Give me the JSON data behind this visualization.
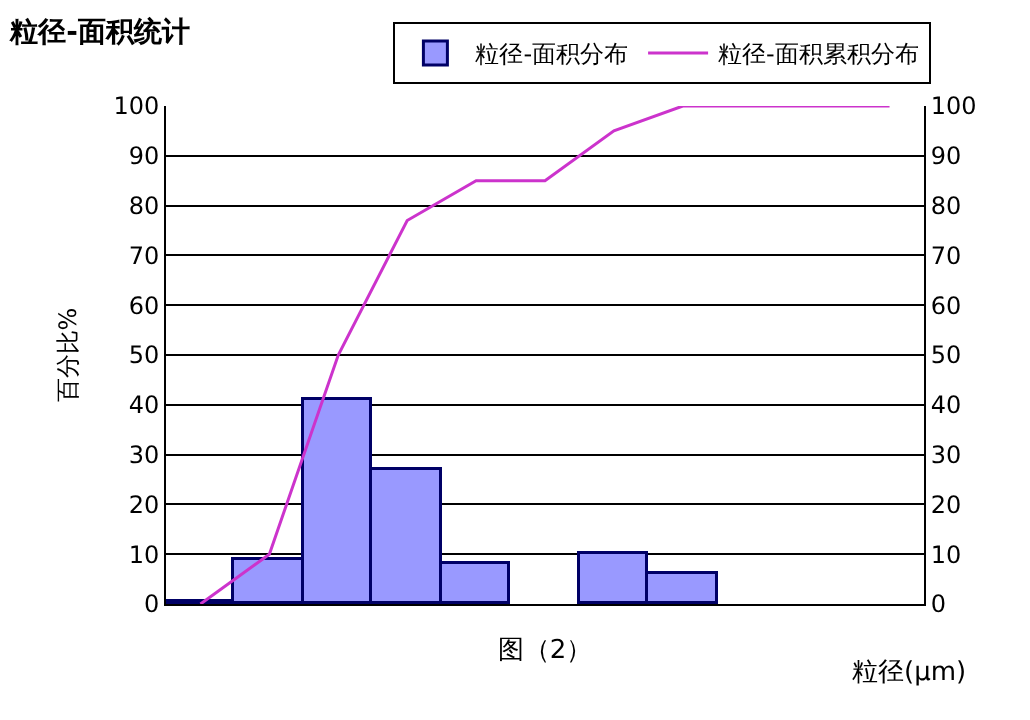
{
  "chart_data": {
    "type": "bar",
    "title": "粒径-面积统计",
    "xlabel": "图（2）",
    "ylabel": "百分比%",
    "annotations": [
      "粒径(μm)"
    ],
    "categories": [
      null,
      null,
      null,
      null,
      null,
      null,
      null,
      null,
      null,
      null,
      null
    ],
    "series": [
      {
        "name": "粒径-面积分布",
        "color": "#9999ff",
        "values": [
          0.5,
          9,
          41,
          27,
          8,
          0,
          10,
          6,
          0,
          0,
          0
        ]
      },
      {
        "name": "粒径-面积累积分布",
        "type": "line",
        "axis": "y2",
        "color": "#cc33cc",
        "values": [
          0,
          10,
          50,
          77,
          85,
          85,
          95,
          100,
          100,
          100,
          100
        ]
      }
    ],
    "ylim": [
      0,
      100
    ],
    "yticks": [
      0,
      10,
      20,
      30,
      40,
      50,
      60,
      70,
      80,
      90,
      100
    ],
    "y2lim": [
      0,
      100
    ],
    "y2ticks": [
      0,
      10,
      20,
      30,
      40,
      50,
      60,
      70,
      80,
      90,
      100
    ],
    "grid": "y",
    "legend": "top",
    "marker": "none",
    "line_style": "solid"
  }
}
